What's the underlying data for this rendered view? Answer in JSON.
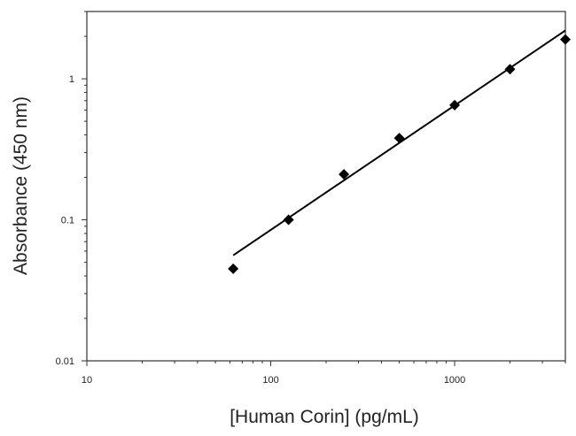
{
  "chart_data": {
    "type": "scatter",
    "title": "",
    "xlabel": "[Human Corin] (pg/mL)",
    "ylabel": "Absorbance (450 nm)",
    "x_scale": "log",
    "y_scale": "log",
    "xlim": [
      10,
      4000
    ],
    "ylim": [
      0.01,
      3
    ],
    "x_ticks": [
      {
        "value": 10,
        "label": "10"
      },
      {
        "value": 100,
        "label": "100"
      },
      {
        "value": 1000,
        "label": "1000"
      }
    ],
    "y_ticks": [
      {
        "value": 0.01,
        "label": "0.01"
      },
      {
        "value": 0.1,
        "label": "0.1"
      },
      {
        "value": 1,
        "label": "1"
      }
    ],
    "grid": false,
    "legend": "none",
    "series": [
      {
        "marker": "diamond",
        "color": "#000000",
        "points": [
          {
            "x": 62.5,
            "y": 0.045
          },
          {
            "x": 125,
            "y": 0.1
          },
          {
            "x": 250,
            "y": 0.21
          },
          {
            "x": 500,
            "y": 0.38
          },
          {
            "x": 1000,
            "y": 0.65
          },
          {
            "x": 2000,
            "y": 1.17
          },
          {
            "x": 4000,
            "y": 1.9
          }
        ]
      }
    ],
    "fit_line": {
      "color": "#000000",
      "points": [
        {
          "x": 62.5,
          "y": 0.056
        },
        {
          "x": 4000,
          "y": 2.2
        }
      ]
    }
  }
}
